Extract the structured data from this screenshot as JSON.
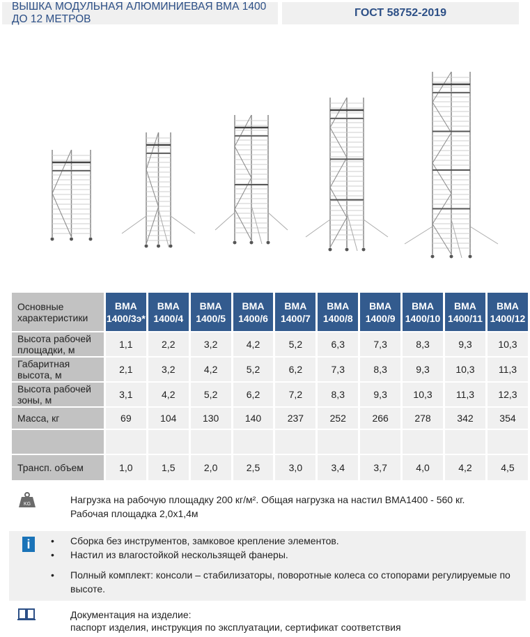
{
  "header": {
    "title": "ВЫШКА МОДУЛЬНАЯ АЛЮМИНИЕВАЯ ВМА 1400 ДО 12 МЕТРОВ",
    "standard": "ГОСТ 58752-2019"
  },
  "table": {
    "corner": "Основные характеристики",
    "models": [
      "ВМА 1400/3э*",
      "ВМА 1400/4",
      "ВМА 1400/5",
      "ВМА 1400/6",
      "ВМА 1400/7",
      "ВМА 1400/8",
      "ВМА 1400/9",
      "ВМА 1400/10",
      "ВМА 1400/11",
      "ВМА 1400/12"
    ],
    "rows": [
      {
        "label": "Высота рабочей площадки, м",
        "values": [
          "1,1",
          "2,2",
          "3,2",
          "4,2",
          "5,2",
          "6,3",
          "7,3",
          "8,3",
          "9,3",
          "10,3"
        ]
      },
      {
        "label": "Габаритная высота, м",
        "values": [
          "2,1",
          "3,2",
          "4,2",
          "5,2",
          "6,2",
          "7,3",
          "8,3",
          "9,3",
          "10,3",
          "11,3"
        ]
      },
      {
        "label": "Высота рабочей зоны, м",
        "values": [
          "3,1",
          "4,2",
          "5,2",
          "6,2",
          "7,2",
          "8,3",
          "9,3",
          "10,3",
          "11,3",
          "12,3"
        ]
      },
      {
        "label": "Масса, кг",
        "values": [
          "69",
          "104",
          "130",
          "140",
          "237",
          "252",
          "266",
          "278",
          "342",
          "354"
        ]
      },
      {
        "label": "",
        "values": [
          "",
          "",
          "",
          "",
          "",
          "",
          "",
          "",
          "",
          ""
        ]
      },
      {
        "label": "Трансп. объем",
        "values": [
          "1,0",
          "1,5",
          "2,0",
          "2,5",
          "3,0",
          "3,4",
          "3,7",
          "4,0",
          "4,2",
          "4,5"
        ]
      }
    ]
  },
  "load": {
    "icon": "weight-kg-icon",
    "icon_text": "KG",
    "line1": "Нагрузка на рабочую площадку 200 кг/м². Общая нагрузка на настил ВМА1400 - 560 кг.",
    "line2": "Рабочая площадка 2,0х1,4м"
  },
  "features": {
    "icon": "info-icon",
    "items": [
      "Сборка без инструментов, замковое крепление элементов.",
      "Настил из влагостойкой нескользящей фанеры.",
      "Полный комплект: консоли – стабилизаторы, поворотные колеса со стопорами регулируемые по высоте."
    ]
  },
  "docs": {
    "icon": "book-icon",
    "line1": "Документация на изделие:",
    "line2": "паспорт изделия, инструкция по эксплуатации, сертификат соответствия"
  },
  "colors": {
    "header_text": "#2c4f86",
    "table_header": "#335b8e",
    "info": "#1a73b8"
  }
}
